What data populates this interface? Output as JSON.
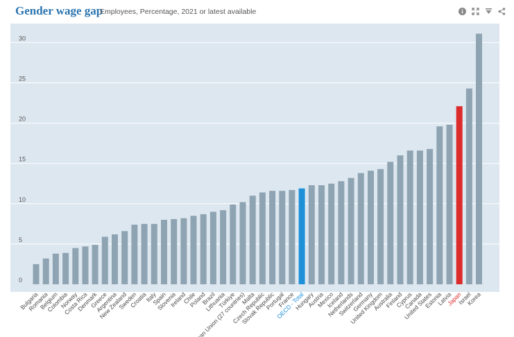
{
  "header": {
    "title": "Gender wage gap",
    "subtitle": "Employees, Percentage, 2021 or latest available"
  },
  "toolbar": {
    "icons": [
      "info-icon",
      "expand-icon",
      "download-icon",
      "share-icon"
    ]
  },
  "colors": {
    "plot_background": "#dde7f0",
    "bar_default": "#8fa4b2",
    "bar_oecd": "#1e90d8",
    "bar_highlight": "#dc2b2b",
    "label_default": "#4a4a4a",
    "label_oecd": "#1e90d8",
    "label_highlight": "#dc2b2b",
    "title": "#2a74b0"
  },
  "chart_data": {
    "type": "bar",
    "title": "Gender wage gap",
    "subtitle": "Employees, Percentage, 2021 or latest available",
    "xlabel": "",
    "ylabel": "",
    "ylim": [
      0,
      33
    ],
    "yticks": [
      0,
      5,
      10,
      15,
      20,
      25,
      30
    ],
    "grid": true,
    "categories": [
      "Bulgaria",
      "Romania",
      "Belgium",
      "Colombia",
      "Norway",
      "Costa Rica",
      "Denmark",
      "Greece",
      "Argentina",
      "New Zealand",
      "Sweden",
      "Croatia",
      "Italy",
      "Spain",
      "Slovenia",
      "Ireland",
      "Chile",
      "Poland",
      "Brazil",
      "Lithuania",
      "Türkiye",
      "European Union (27 countries)",
      "Malta",
      "Czech Republic",
      "Slovak Republic",
      "Portugal",
      "France",
      "OECD - Total",
      "Hungary",
      "Austria",
      "Mexico",
      "Iceland",
      "Netherlands",
      "Switzerland",
      "Germany",
      "United Kingdom",
      "Australia",
      "Finland",
      "Cyprus",
      "Canada",
      "United States",
      "Estonia",
      "Latvia",
      "Japan",
      "Israel",
      "Korea"
    ],
    "values": [
      2.5,
      3.2,
      3.8,
      3.9,
      4.5,
      4.7,
      4.9,
      5.9,
      6.2,
      6.6,
      7.4,
      7.5,
      7.5,
      8.0,
      8.1,
      8.2,
      8.5,
      8.7,
      9.0,
      9.2,
      9.9,
      10.2,
      11.0,
      11.4,
      11.6,
      11.6,
      11.7,
      11.9,
      12.3,
      12.3,
      12.5,
      12.8,
      13.2,
      13.8,
      14.1,
      14.3,
      15.2,
      16.0,
      16.6,
      16.6,
      16.8,
      19.6,
      19.8,
      22.1,
      24.3,
      31.1
    ],
    "highlight": {
      "OECD - Total": "oecd",
      "Japan": "highlight"
    }
  }
}
